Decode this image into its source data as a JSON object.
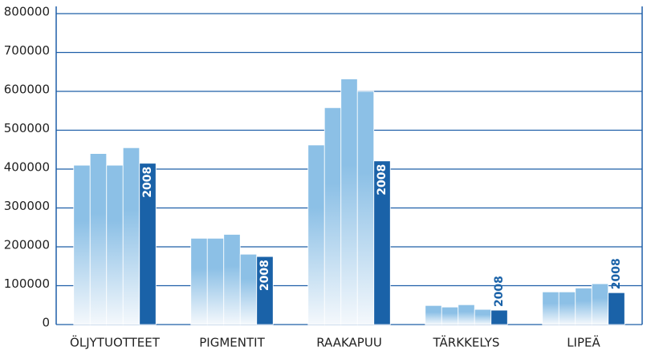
{
  "chart_data": {
    "type": "bar",
    "categories": [
      "ÖLJYTUOTTEET",
      "PIGMENTIT",
      "RAAKAPUU",
      "TÄRKKELYS",
      "LIPEÄ"
    ],
    "series": [
      {
        "color": "#8cc0e6",
        "values": [
          410000,
          222000,
          462000,
          49000,
          84000
        ]
      },
      {
        "color": "#8cc0e6",
        "values": [
          440000,
          222000,
          558000,
          45000,
          84000
        ]
      },
      {
        "color": "#8cc0e6",
        "values": [
          410000,
          232000,
          632000,
          51000,
          94000
        ]
      },
      {
        "color": "#8cc0e6",
        "values": [
          455000,
          181000,
          600000,
          39000,
          105000
        ]
      },
      {
        "name": "2008",
        "color": "#1a62a8",
        "values": [
          415000,
          175000,
          421000,
          37000,
          82000
        ]
      }
    ],
    "ylim": [
      0,
      800000
    ],
    "yticks": [
      0,
      100000,
      200000,
      300000,
      400000,
      500000,
      600000,
      700000,
      800000
    ],
    "grid": true
  }
}
